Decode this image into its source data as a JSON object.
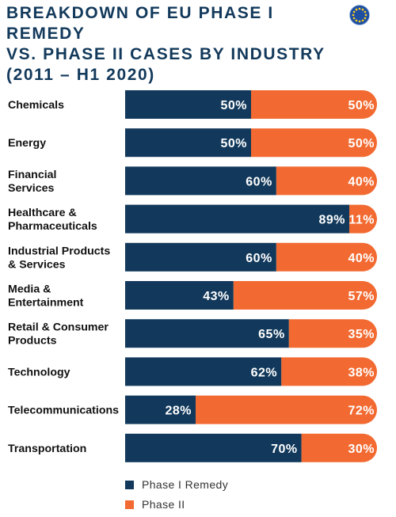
{
  "title": "BREAKDOWN OF EU PHASE I REMEDY\nVS. PHASE II CASES BY INDUSTRY\n(2011 – H1 2020)",
  "icon": "eu-flag-icon",
  "colors": {
    "phase1": "#12395b",
    "phase2": "#f26a31",
    "title": "#12395b"
  },
  "chart_data": {
    "type": "bar",
    "orientation": "horizontal",
    "stacked": true,
    "categories": [
      "Chemicals",
      "Energy",
      "Financial\nServices",
      "Healthcare &\nPharmaceuticals",
      "Industrial Products\n& Services",
      "Media &\nEntertainment",
      "Retail & Consumer\nProducts",
      "Technology",
      "Telecommunications",
      "Transportation"
    ],
    "series": [
      {
        "name": "Phase I Remedy",
        "color": "#12395b",
        "values": [
          50,
          50,
          60,
          89,
          60,
          43,
          65,
          62,
          28,
          70
        ]
      },
      {
        "name": "Phase II",
        "color": "#f26a31",
        "values": [
          50,
          50,
          40,
          11,
          40,
          57,
          35,
          38,
          72,
          30
        ]
      }
    ],
    "value_suffix": "%",
    "xlim": [
      0,
      100
    ],
    "grid": false,
    "legend_position": "bottom"
  }
}
